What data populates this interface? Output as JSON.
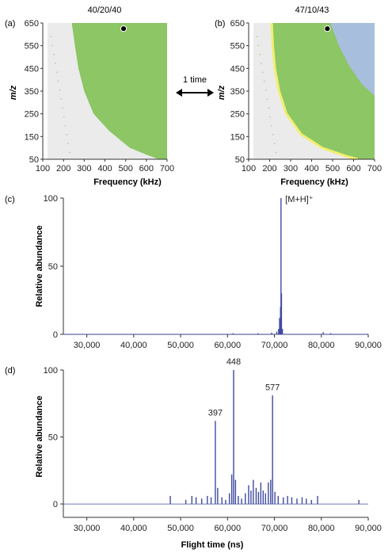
{
  "figure": {
    "arrow_label": "1 time"
  },
  "colors": {
    "green_region": "#8cc665",
    "gray_region": "#ebebeb",
    "blue_region": "#a8bedd",
    "yellow_edge": "#f2ee6e",
    "axis": "#333333",
    "spectrum_line": "#3e4aa0"
  },
  "chart_data": [
    {
      "id": "a",
      "panel_label": "(a)",
      "type": "area",
      "title": "40/20/40",
      "xlabel": "Frequency (kHz)",
      "ylabel": "m/z",
      "xlim": [
        100,
        700
      ],
      "ylim": [
        50,
        650
      ],
      "xticks": [
        100,
        200,
        300,
        400,
        500,
        600,
        700
      ],
      "yticks": [
        50,
        150,
        250,
        350,
        450,
        550,
        650
      ],
      "regions": [
        {
          "color": "gray",
          "desc": "stable-region background"
        },
        {
          "color": "green",
          "boundary": [
            [
              240,
              650
            ],
            [
              255,
              550
            ],
            [
              272,
              450
            ],
            [
              300,
              350
            ],
            [
              345,
              250
            ],
            [
              420,
              175
            ],
            [
              520,
              100
            ],
            [
              600,
              70
            ],
            [
              660,
              50
            ]
          ]
        }
      ],
      "marker": {
        "x": 490,
        "y": 625
      }
    },
    {
      "id": "b",
      "panel_label": "(b)",
      "type": "area",
      "title": "47/10/43",
      "xlabel": "Frequency (kHz)",
      "ylabel": "m/z",
      "xlim": [
        100,
        700
      ],
      "ylim": [
        50,
        650
      ],
      "xticks": [
        100,
        200,
        300,
        400,
        500,
        600,
        700
      ],
      "yticks": [
        50,
        150,
        250,
        350,
        450,
        550,
        650
      ],
      "regions": [
        {
          "color": "gray",
          "desc": "background"
        },
        {
          "color": "green",
          "boundary": [
            [
              210,
              650
            ],
            [
              215,
              550
            ],
            [
              225,
              450
            ],
            [
              245,
              350
            ],
            [
              280,
              250
            ],
            [
              350,
              160
            ],
            [
              450,
              100
            ],
            [
              560,
              65
            ],
            [
              620,
              50
            ]
          ]
        },
        {
          "color": "blue",
          "boundary": [
            [
              490,
              650
            ],
            [
              530,
              550
            ],
            [
              580,
              460
            ],
            [
              640,
              380
            ],
            [
              700,
              330
            ]
          ]
        }
      ],
      "marker": {
        "x": 475,
        "y": 625
      }
    },
    {
      "id": "c",
      "panel_label": "(c)",
      "type": "line",
      "xlabel": "",
      "ylabel": "Relative abundance",
      "xlim": [
        25000,
        90000
      ],
      "ylim": [
        0,
        100
      ],
      "xticks": [
        30000,
        40000,
        50000,
        60000,
        70000,
        80000,
        90000
      ],
      "xtick_labels": [
        "30,000",
        "40,000",
        "50,000",
        "60,000",
        "70,000",
        "80,000",
        "90,000"
      ],
      "yticks": [
        0,
        50,
        100
      ],
      "peaks": [
        {
          "x": 61200,
          "y": 0.8
        },
        {
          "x": 66500,
          "y": 0.8
        },
        {
          "x": 69400,
          "y": 1.2
        },
        {
          "x": 70500,
          "y": 2
        },
        {
          "x": 70900,
          "y": 4
        },
        {
          "x": 71100,
          "y": 12
        },
        {
          "x": 71300,
          "y": 20
        },
        {
          "x": 71400,
          "y": 100
        },
        {
          "x": 71500,
          "y": 30
        },
        {
          "x": 71700,
          "y": 4
        },
        {
          "x": 80400,
          "y": 1.5
        },
        {
          "x": 82000,
          "y": 0.8
        }
      ],
      "annotations": [
        {
          "text": "[M+H]⁺",
          "x": 72300,
          "y": 97
        }
      ]
    },
    {
      "id": "d",
      "panel_label": "(d)",
      "type": "line",
      "xlabel": "Flight time (ns)",
      "ylabel": "Relative abundance",
      "xlim": [
        25000,
        90000
      ],
      "ylim": [
        -10,
        100
      ],
      "xticks": [
        30000,
        40000,
        50000,
        60000,
        70000,
        80000,
        90000
      ],
      "xtick_labels": [
        "30,000",
        "40,000",
        "50,000",
        "60,000",
        "70,000",
        "80,000",
        "90,000"
      ],
      "yticks": [
        0,
        50,
        100
      ],
      "peaks": [
        {
          "x": 47800,
          "y": 6
        },
        {
          "x": 51100,
          "y": 3
        },
        {
          "x": 52400,
          "y": 6
        },
        {
          "x": 53300,
          "y": 5
        },
        {
          "x": 54500,
          "y": 4
        },
        {
          "x": 55700,
          "y": 6
        },
        {
          "x": 56500,
          "y": 5
        },
        {
          "x": 57400,
          "y": 62
        },
        {
          "x": 57900,
          "y": 12
        },
        {
          "x": 58800,
          "y": 5
        },
        {
          "x": 59600,
          "y": 3
        },
        {
          "x": 60400,
          "y": 8
        },
        {
          "x": 60900,
          "y": 22
        },
        {
          "x": 61300,
          "y": 100
        },
        {
          "x": 61700,
          "y": 18
        },
        {
          "x": 62300,
          "y": 6
        },
        {
          "x": 63000,
          "y": 4
        },
        {
          "x": 63800,
          "y": 8
        },
        {
          "x": 64500,
          "y": 14
        },
        {
          "x": 65000,
          "y": 10
        },
        {
          "x": 65500,
          "y": 18
        },
        {
          "x": 66100,
          "y": 12
        },
        {
          "x": 66600,
          "y": 9
        },
        {
          "x": 67100,
          "y": 16
        },
        {
          "x": 67600,
          "y": 10
        },
        {
          "x": 68100,
          "y": 8
        },
        {
          "x": 68700,
          "y": 16
        },
        {
          "x": 69200,
          "y": 18
        },
        {
          "x": 69600,
          "y": 81
        },
        {
          "x": 70100,
          "y": 9
        },
        {
          "x": 70800,
          "y": 6
        },
        {
          "x": 71900,
          "y": 5
        },
        {
          "x": 72800,
          "y": 6
        },
        {
          "x": 73700,
          "y": 5
        },
        {
          "x": 74800,
          "y": 4
        },
        {
          "x": 75900,
          "y": 5
        },
        {
          "x": 76800,
          "y": 4
        },
        {
          "x": 77900,
          "y": 3
        },
        {
          "x": 79200,
          "y": 6
        },
        {
          "x": 88000,
          "y": 3
        }
      ],
      "annotations": [
        {
          "text": "397",
          "x": 57400,
          "y": 66
        },
        {
          "text": "448",
          "x": 61300,
          "y": 104
        },
        {
          "text": "577",
          "x": 69600,
          "y": 85
        }
      ]
    }
  ]
}
